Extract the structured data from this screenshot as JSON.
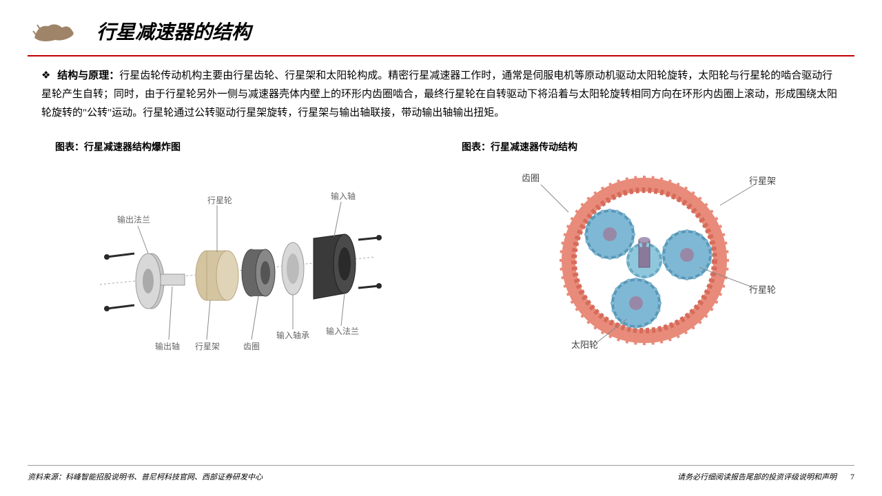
{
  "header": {
    "title": "行星减速器的结构",
    "logo_color": "#9f8469"
  },
  "body": {
    "bullet": "❖",
    "label": "结构与原理：",
    "text": "行星齿轮传动机构主要由行星齿轮、行星架和太阳轮构成。精密行星减速器工作时，通常是伺服电机等原动机驱动太阳轮旋转，太阳轮与行星轮的啮合驱动行星轮产生自转；同时，由于行星轮另外一侧与减速器壳体内壁上的环形内齿圈啮合，最终行星轮在自转驱动下将沿着与太阳轮旋转相同方向在环形内齿圈上滚动，形成围绕太阳轮旋转的\"公转\"运动。行星轮通过公转驱动行星架旋转，行星架与输出轴联接，带动输出轴输出扭矩。"
  },
  "chart1": {
    "title": "图表：行星减速器结构爆炸图",
    "callouts": {
      "output_flange": "输出法兰",
      "output_shaft": "输出轴",
      "planet_wheel": "行星轮",
      "planet_carrier": "行星架",
      "ring_gear": "齿圈",
      "input_bearing": "输入轴承",
      "input_shaft": "输入轴",
      "input_flange": "输入法兰"
    },
    "colors": {
      "flange_gray": "#c8c8c8",
      "shaft_silver": "#d8d8d8",
      "carrier_beige": "#d4c4a0",
      "gear_dark": "#666666",
      "housing_black": "#3a3a3a",
      "bolt_black": "#2a2a2a"
    }
  },
  "chart2": {
    "title": "图表：行星减速器传动结构",
    "labels": {
      "ring_gear": "齿圈",
      "planet_carrier": "行星架",
      "sun_wheel": "太阳轮",
      "planet_wheel": "行星轮"
    },
    "colors": {
      "ring_outer": "#e88b7a",
      "ring_teeth": "#d66b5a",
      "planet_gear": "#7fb8d4",
      "planet_gear_dark": "#5a98b8",
      "sun_gear": "#8fc8dc",
      "carrier_shaft": "#8a7a9a",
      "carrier_pin": "#9888a8"
    }
  },
  "footer": {
    "source": "资料来源：科峰智能招股说明书、普尼柯科技官网、西部证券研发中心",
    "disclaimer": "请务必行细阅读报告尾部的投资评级说明和声明",
    "page": "7"
  },
  "style": {
    "accent_red": "#c00000",
    "text_color": "#000000",
    "background": "#ffffff"
  }
}
